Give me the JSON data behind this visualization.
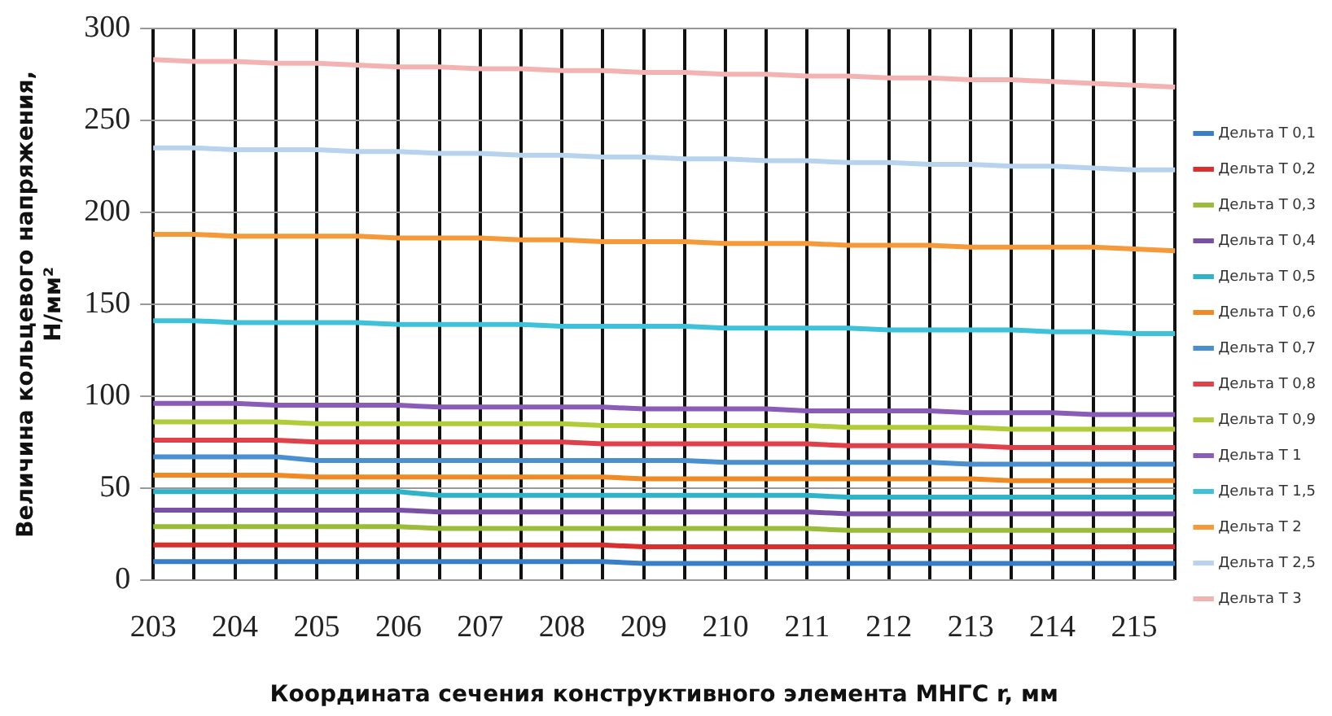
{
  "chart_data": {
    "type": "line",
    "xlabel": "Координата сечения конструктивного элемента МНГС r, мм",
    "ylabel": "Величина кольцевого напряжения, Н/мм²",
    "categories": [
      "203",
      null,
      "204",
      null,
      "205",
      null,
      "206",
      null,
      "207",
      null,
      "208",
      null,
      "209",
      null,
      "210",
      null,
      "211",
      null,
      "212",
      null,
      "213",
      null,
      "214",
      null,
      "215",
      null
    ],
    "ylim": [
      0,
      300
    ],
    "yticks": [
      0,
      50,
      100,
      150,
      200,
      250,
      300
    ],
    "grid": true,
    "legend": "right",
    "marker": "none",
    "line_style": "solid",
    "series": [
      {
        "name": "Дельта Т 0,1",
        "color": "#3a7dc9",
        "values": [
          10,
          10,
          10,
          10,
          10,
          10,
          10,
          10,
          10,
          10,
          10,
          10,
          9,
          9,
          9,
          9,
          9,
          9,
          9,
          9,
          9,
          9,
          9,
          9,
          9,
          9
        ]
      },
      {
        "name": "Дельта Т 0,2",
        "color": "#d9302f",
        "values": [
          19,
          19,
          19,
          19,
          19,
          19,
          19,
          19,
          19,
          19,
          19,
          19,
          18,
          18,
          18,
          18,
          18,
          18,
          18,
          18,
          18,
          18,
          18,
          18,
          18,
          18
        ]
      },
      {
        "name": "Дельта Т 0,3",
        "color": "#9bbb3a",
        "values": [
          29,
          29,
          29,
          29,
          29,
          29,
          29,
          28,
          28,
          28,
          28,
          28,
          28,
          28,
          28,
          28,
          28,
          27,
          27,
          27,
          27,
          27,
          27,
          27,
          27,
          27
        ]
      },
      {
        "name": "Дельта Т 0,4",
        "color": "#7a4fa6",
        "values": [
          38,
          38,
          38,
          38,
          38,
          38,
          38,
          37,
          37,
          37,
          37,
          37,
          37,
          37,
          37,
          37,
          37,
          36,
          36,
          36,
          36,
          36,
          36,
          36,
          36,
          36
        ]
      },
      {
        "name": "Дельта Т 0,5",
        "color": "#2fb3c9",
        "values": [
          48,
          48,
          48,
          48,
          48,
          48,
          48,
          46,
          46,
          46,
          46,
          46,
          46,
          46,
          46,
          46,
          46,
          45,
          45,
          45,
          45,
          45,
          45,
          45,
          45,
          45
        ]
      },
      {
        "name": "Дельта Т 0,6",
        "color": "#f08a24",
        "values": [
          57,
          57,
          57,
          57,
          56,
          56,
          56,
          56,
          56,
          56,
          56,
          56,
          55,
          55,
          55,
          55,
          55,
          55,
          55,
          55,
          55,
          54,
          54,
          54,
          54,
          54
        ]
      },
      {
        "name": "Дельта Т 0,7",
        "color": "#4a90d0",
        "values": [
          67,
          67,
          67,
          67,
          65,
          65,
          65,
          65,
          65,
          65,
          65,
          65,
          65,
          65,
          64,
          64,
          64,
          64,
          64,
          64,
          63,
          63,
          63,
          63,
          63,
          63
        ]
      },
      {
        "name": "Дельта Т 0,8",
        "color": "#e0404a",
        "values": [
          76,
          76,
          76,
          76,
          75,
          75,
          75,
          75,
          75,
          75,
          75,
          74,
          74,
          74,
          74,
          74,
          74,
          73,
          73,
          73,
          73,
          72,
          72,
          72,
          72,
          72
        ]
      },
      {
        "name": "Дельта Т 0,9",
        "color": "#b0cc3a",
        "values": [
          86,
          86,
          86,
          86,
          85,
          85,
          85,
          85,
          85,
          85,
          85,
          84,
          84,
          84,
          84,
          84,
          84,
          83,
          83,
          83,
          83,
          82,
          82,
          82,
          82,
          82
        ]
      },
      {
        "name": "Дельта Т 1",
        "color": "#8a5cb8",
        "values": [
          96,
          96,
          96,
          95,
          95,
          95,
          95,
          94,
          94,
          94,
          94,
          94,
          93,
          93,
          93,
          93,
          92,
          92,
          92,
          92,
          91,
          91,
          91,
          90,
          90,
          90
        ]
      },
      {
        "name": "Дельта Т 1,5",
        "color": "#3fc1d9",
        "values": [
          141,
          141,
          140,
          140,
          140,
          140,
          139,
          139,
          139,
          139,
          138,
          138,
          138,
          138,
          137,
          137,
          137,
          137,
          136,
          136,
          136,
          136,
          135,
          135,
          134,
          134
        ]
      },
      {
        "name": "Дельта Т 2",
        "color": "#f59a3a",
        "values": [
          188,
          188,
          187,
          187,
          187,
          187,
          186,
          186,
          186,
          185,
          185,
          184,
          184,
          184,
          183,
          183,
          183,
          182,
          182,
          182,
          181,
          181,
          181,
          181,
          180,
          179
        ]
      },
      {
        "name": "Дельта Т 2,5",
        "color": "#b8d3ee",
        "values": [
          235,
          235,
          234,
          234,
          234,
          233,
          233,
          232,
          232,
          231,
          231,
          230,
          230,
          229,
          229,
          228,
          228,
          227,
          227,
          226,
          226,
          225,
          225,
          224,
          223,
          223
        ]
      },
      {
        "name": "Дельта Т 3",
        "color": "#f4b3b3",
        "values": [
          283,
          282,
          282,
          281,
          281,
          280,
          279,
          279,
          278,
          278,
          277,
          277,
          276,
          276,
          275,
          275,
          274,
          274,
          273,
          273,
          272,
          272,
          271,
          270,
          269,
          268
        ]
      }
    ]
  }
}
